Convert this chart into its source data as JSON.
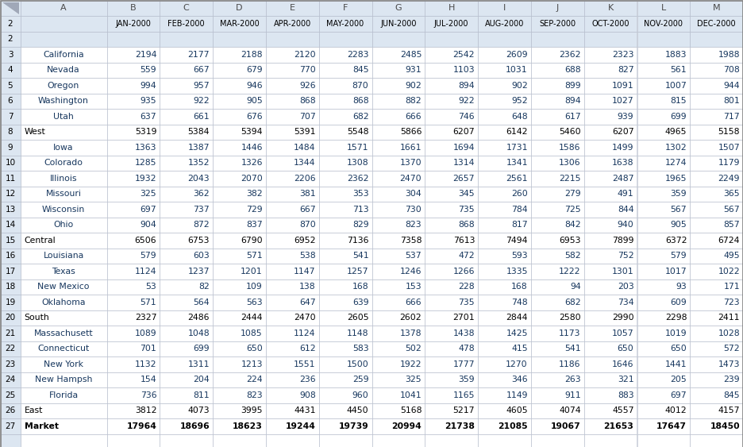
{
  "col_headers": [
    "A",
    "B",
    "C",
    "D",
    "E",
    "F",
    "G",
    "H",
    "I",
    "J",
    "K",
    "L",
    "M"
  ],
  "row_numbers": [
    2,
    3,
    4,
    5,
    6,
    7,
    8,
    9,
    10,
    11,
    12,
    13,
    14,
    15,
    16,
    17,
    18,
    19,
    20,
    21,
    22,
    23,
    24,
    25,
    26,
    27
  ],
  "month_headers": [
    "JAN-2000",
    "FEB-2000",
    "MAR-2000",
    "APR-2000",
    "MAY-2000",
    "JUN-2000",
    "JUL-2000",
    "AUG-2000",
    "SEP-2000",
    "OCT-2000",
    "NOV-2000",
    "DEC-2000"
  ],
  "rows": [
    {
      "label": "",
      "values": [
        null,
        null,
        null,
        null,
        null,
        null,
        null,
        null,
        null,
        null,
        null,
        null
      ],
      "type": "header"
    },
    {
      "label": "California",
      "values": [
        2194,
        2177,
        2188,
        2120,
        2283,
        2485,
        2542,
        2609,
        2362,
        2323,
        1883,
        1988
      ],
      "type": "state"
    },
    {
      "label": "Nevada",
      "values": [
        559,
        667,
        679,
        770,
        845,
        931,
        1103,
        1031,
        688,
        827,
        561,
        708
      ],
      "type": "state"
    },
    {
      "label": "Oregon",
      "values": [
        994,
        957,
        946,
        926,
        870,
        902,
        894,
        902,
        899,
        1091,
        1007,
        944
      ],
      "type": "state"
    },
    {
      "label": "Washington",
      "values": [
        935,
        922,
        905,
        868,
        868,
        882,
        922,
        952,
        894,
        1027,
        815,
        801
      ],
      "type": "state"
    },
    {
      "label": "Utah",
      "values": [
        637,
        661,
        676,
        707,
        682,
        666,
        746,
        648,
        617,
        939,
        699,
        717
      ],
      "type": "state"
    },
    {
      "label": "West",
      "values": [
        5319,
        5384,
        5394,
        5391,
        5548,
        5866,
        6207,
        6142,
        5460,
        6207,
        4965,
        5158
      ],
      "type": "region"
    },
    {
      "label": "Iowa",
      "values": [
        1363,
        1387,
        1446,
        1484,
        1571,
        1661,
        1694,
        1731,
        1586,
        1499,
        1302,
        1507
      ],
      "type": "state"
    },
    {
      "label": "Colorado",
      "values": [
        1285,
        1352,
        1326,
        1344,
        1308,
        1370,
        1314,
        1341,
        1306,
        1638,
        1274,
        1179
      ],
      "type": "state"
    },
    {
      "label": "Illinois",
      "values": [
        1932,
        2043,
        2070,
        2206,
        2362,
        2470,
        2657,
        2561,
        2215,
        2487,
        1965,
        2249
      ],
      "type": "state"
    },
    {
      "label": "Missouri",
      "values": [
        325,
        362,
        382,
        381,
        353,
        304,
        345,
        260,
        279,
        491,
        359,
        365
      ],
      "type": "state"
    },
    {
      "label": "Wisconsin",
      "values": [
        697,
        737,
        729,
        667,
        713,
        730,
        735,
        784,
        725,
        844,
        567,
        567
      ],
      "type": "state"
    },
    {
      "label": "Ohio",
      "values": [
        904,
        872,
        837,
        870,
        829,
        823,
        868,
        817,
        842,
        940,
        905,
        857
      ],
      "type": "state"
    },
    {
      "label": "Central",
      "values": [
        6506,
        6753,
        6790,
        6952,
        7136,
        7358,
        7613,
        7494,
        6953,
        7899,
        6372,
        6724
      ],
      "type": "region"
    },
    {
      "label": "Louisiana",
      "values": [
        579,
        603,
        571,
        538,
        541,
        537,
        472,
        593,
        582,
        752,
        579,
        495
      ],
      "type": "state"
    },
    {
      "label": "Texas",
      "values": [
        1124,
        1237,
        1201,
        1147,
        1257,
        1246,
        1266,
        1335,
        1222,
        1301,
        1017,
        1022
      ],
      "type": "state"
    },
    {
      "label": "New Mexico",
      "values": [
        53,
        82,
        109,
        138,
        168,
        153,
        228,
        168,
        94,
        203,
        93,
        171
      ],
      "type": "state"
    },
    {
      "label": "Oklahoma",
      "values": [
        571,
        564,
        563,
        647,
        639,
        666,
        735,
        748,
        682,
        734,
        609,
        723
      ],
      "type": "state"
    },
    {
      "label": "South",
      "values": [
        2327,
        2486,
        2444,
        2470,
        2605,
        2602,
        2701,
        2844,
        2580,
        2990,
        2298,
        2411
      ],
      "type": "region"
    },
    {
      "label": "Massachusett",
      "values": [
        1089,
        1048,
        1085,
        1124,
        1148,
        1378,
        1438,
        1425,
        1173,
        1057,
        1019,
        1028
      ],
      "type": "state"
    },
    {
      "label": "Connecticut",
      "values": [
        701,
        699,
        650,
        612,
        583,
        502,
        478,
        415,
        541,
        650,
        650,
        572
      ],
      "type": "state"
    },
    {
      "label": "New York",
      "values": [
        1132,
        1311,
        1213,
        1551,
        1500,
        1922,
        1777,
        1270,
        1186,
        1646,
        1441,
        1473
      ],
      "type": "state"
    },
    {
      "label": "New Hampsh",
      "values": [
        154,
        204,
        224,
        236,
        259,
        325,
        359,
        346,
        263,
        321,
        205,
        239
      ],
      "type": "state"
    },
    {
      "label": "Florida",
      "values": [
        736,
        811,
        823,
        908,
        960,
        1041,
        1165,
        1149,
        911,
        883,
        697,
        845
      ],
      "type": "state"
    },
    {
      "label": "East",
      "values": [
        3812,
        4073,
        3995,
        4431,
        4450,
        5168,
        5217,
        4605,
        4074,
        4557,
        4012,
        4157
      ],
      "type": "region"
    },
    {
      "label": "Market",
      "values": [
        17964,
        18696,
        18623,
        19244,
        19739,
        20994,
        21738,
        21085,
        19067,
        21653,
        17647,
        18450
      ],
      "type": "market"
    }
  ],
  "colors": {
    "header_bg": "#dce6f1",
    "grid_line": "#b0b8c8",
    "state_text": "#17375e",
    "region_text": "#000000",
    "market_text": "#000000",
    "data_bg": "#ffffff",
    "row_num_bg": "#dce6f1"
  }
}
